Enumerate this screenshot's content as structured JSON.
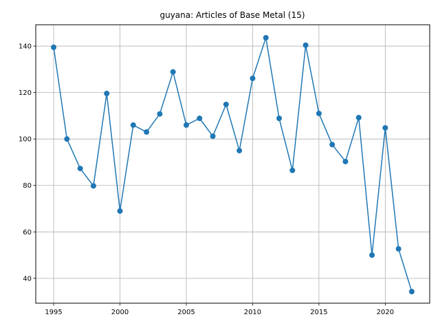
{
  "chart_data": {
    "type": "line",
    "title": "guyana: Articles of Base Metal (15)",
    "xlabel": "",
    "ylabel": "",
    "x": [
      1995,
      1996,
      1997,
      1998,
      1999,
      2000,
      2001,
      2002,
      2003,
      2004,
      2005,
      2006,
      2007,
      2008,
      2009,
      2010,
      2011,
      2012,
      2013,
      2014,
      2015,
      2016,
      2017,
      2018,
      2019,
      2020,
      2021,
      2022
    ],
    "series": [
      {
        "values": [
          139.5,
          100.0,
          87.3,
          79.8,
          119.6,
          69.0,
          106.0,
          103.0,
          110.8,
          128.9,
          106.0,
          108.9,
          101.2,
          114.9,
          95.0,
          126.1,
          143.6,
          108.9,
          86.5,
          140.4,
          111.0,
          97.6,
          90.3,
          109.2,
          50.0,
          104.8,
          52.7,
          34.3
        ],
        "color": "#1f77b4"
      }
    ],
    "xlim": [
      1993.65,
      2023.35
    ],
    "ylim": [
      29.3,
      149.2
    ],
    "xticks": [
      1995,
      2000,
      2005,
      2010,
      2015,
      2020
    ],
    "yticks": [
      40,
      60,
      80,
      100,
      120,
      140
    ],
    "grid": true,
    "legend": "none"
  }
}
